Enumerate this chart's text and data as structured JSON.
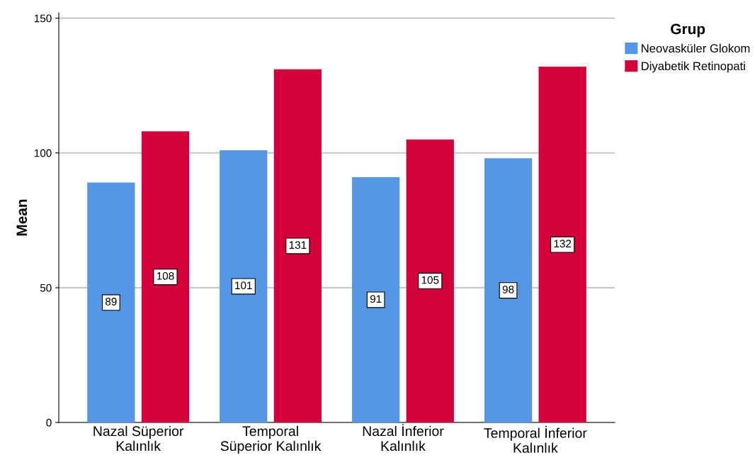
{
  "chart_data": {
    "type": "bar",
    "ylabel": "Mean",
    "legend_title": "Grup",
    "categories": [
      "Nazal Süperior\nKalınlık",
      "Temporal\nSüperior Kalınlık",
      "Nazal İnferior\nKalınlık",
      "Temporal İnferior\nKalınlık"
    ],
    "series": [
      {
        "name": "Neovasküler Glokom",
        "color": "#5596e6",
        "values": [
          89,
          101,
          91,
          98
        ]
      },
      {
        "name": "Diyabetik Retinopati",
        "color": "#d3003a",
        "values": [
          108,
          131,
          105,
          132
        ]
      }
    ],
    "ylim": [
      0,
      152
    ],
    "yticks": [
      0,
      50,
      100,
      150
    ],
    "grid": "y",
    "legend": "right",
    "data_labels": true
  }
}
